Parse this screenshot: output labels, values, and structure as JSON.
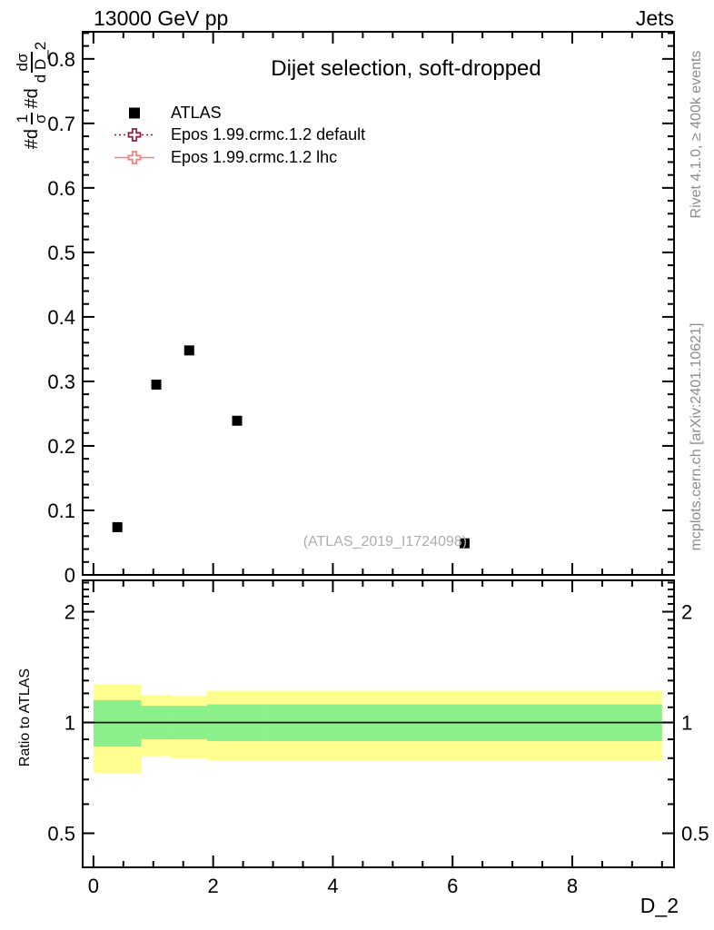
{
  "header": {
    "left": "13000 GeV pp",
    "right": "Jets"
  },
  "side_notes": {
    "top": "Rivet 4.1.0, ≥ 400k events",
    "bottom": "mcplots.cern.ch [arXiv:2401.10621]"
  },
  "watermark": "(ATLAS_2019_I1724098)",
  "ylabel_formula": {
    "prefix1": "#d",
    "num1": "1",
    "den1": "σ",
    "prefix2": "#d",
    "num2": "dσ",
    "den2": "d D_2"
  },
  "chart_data": {
    "type": "scatter",
    "title": "Dijet selection, soft-dropped",
    "xlabel": "D_2",
    "ylabel": "#d 1/σ #d dσ / d D_2",
    "grid": false,
    "legend_position": "top-left",
    "x_range": [
      -0.18,
      9.7
    ],
    "y_range": [
      0,
      0.842
    ],
    "x_major_ticks": [
      0,
      2,
      4,
      6,
      8
    ],
    "x_tick_labels": [
      "0",
      "2",
      "4",
      "6",
      "8"
    ],
    "x_minor_step": 0.5,
    "y_major_ticks": [
      0,
      0.1,
      0.2,
      0.3,
      0.4,
      0.5,
      0.6,
      0.7,
      0.8
    ],
    "y_tick_labels": [
      "0",
      "0.1",
      "0.2",
      "0.3",
      "0.4",
      "0.5",
      "0.6",
      "0.7",
      "0.8"
    ],
    "y_minor_step": 0.02,
    "series": [
      {
        "name": "ATLAS",
        "type": "points",
        "marker": "filled-square",
        "color": "#000000",
        "x": [
          0.4,
          1.05,
          1.6,
          2.4,
          6.2
        ],
        "y": [
          0.074,
          0.295,
          0.348,
          0.239,
          0.049
        ]
      },
      {
        "name": "Epos 1.99.crmc.1.2 default",
        "type": "line",
        "style": "dotted",
        "marker": "open-cross",
        "color": "#8b2147",
        "visible_in_plot": false
      },
      {
        "name": "Epos 1.99.crmc.1.2 lhc",
        "type": "line",
        "style": "solid",
        "marker": "open-cross",
        "color": "#f97f7f",
        "visible_in_plot": false
      }
    ],
    "ratio": {
      "ylabel": "Ratio to ATLAS",
      "scale": "log",
      "range": [
        0.404,
        2.434
      ],
      "major_ticks": [
        0.5,
        1,
        2
      ],
      "major_tick_labels": [
        "0.5",
        "1",
        "2"
      ],
      "minor_tick_step": 0.1,
      "unity_line": 1,
      "bands": {
        "bin_edges": [
          0,
          0.8,
          1.3,
          1.9,
          2.9,
          9.5
        ],
        "yellow": [
          [
            0.73,
            1.27
          ],
          [
            0.81,
            1.19
          ],
          [
            0.8,
            1.18
          ],
          [
            0.79,
            1.22
          ],
          [
            0.79,
            1.22
          ]
        ],
        "green": [
          [
            0.86,
            1.15
          ],
          [
            0.9,
            1.11
          ],
          [
            0.9,
            1.11
          ],
          [
            0.89,
            1.12
          ],
          [
            0.89,
            1.12
          ]
        ]
      }
    },
    "colors": {
      "band_yellow": "#ffff8f",
      "band_green": "#8bf08b",
      "atlas": "#000000",
      "epos_default": "#8b2147",
      "epos_lhc": "#f97f7f",
      "watermark_text": "#adadad",
      "side_note_text": "#8c8c8c",
      "axis": "#000000"
    }
  }
}
